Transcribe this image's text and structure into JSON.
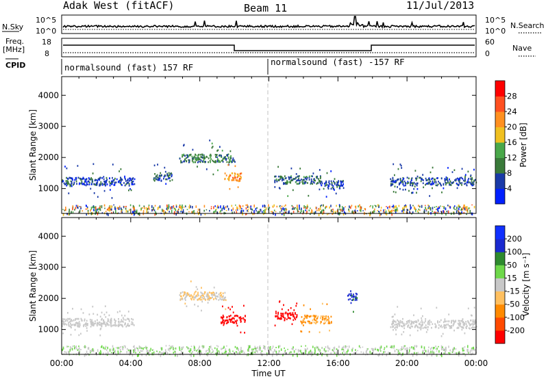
{
  "header": {
    "station": "Adak West (fitACF)",
    "beam": "Beam 11",
    "date": "11/Jul/2013"
  },
  "top_panels": {
    "nsky_label": "N.Sky",
    "nsky_ticks": [
      "10^5",
      "10^0"
    ],
    "nsearch_label": "N.Search",
    "nsearch_ticks": [
      "10^5",
      "10^0"
    ],
    "freq_label": "Freq.",
    "freq_unit": "[MHz]",
    "freq_ticks": [
      "18",
      "8"
    ],
    "nave_label": "Nave",
    "nave_ticks": [
      "60",
      "0"
    ],
    "cpid_label": "CPID",
    "cpid_segments": [
      "normalsound (fast) 157 RF",
      "normalsound (fast) -157 RF"
    ]
  },
  "colors": {
    "power_scale": [
      "#0020ff",
      "#1a3aa8",
      "#3a7a3a",
      "#4aa84a",
      "#f0c020",
      "#ff9020",
      "#ff5020",
      "#ff0000"
    ],
    "velocity_scale": [
      "#ff0000",
      "#ff4a00",
      "#ff8a00",
      "#ffc060",
      "#c8c8c8",
      "#6ed84a",
      "#2e8a2e",
      "#1a2ad0",
      "#1030ff"
    ]
  },
  "chart_data": [
    {
      "type": "heatmap",
      "name": "power-panel",
      "xlabel": "Time UT",
      "ylabel": "Slant Range [km]",
      "x_ticks": [
        "00:00",
        "04:00",
        "08:00",
        "12:00",
        "16:00",
        "20:00",
        "00:00"
      ],
      "xlim": [
        0,
        24
      ],
      "y_ticks": [
        1000,
        2000,
        3000,
        4000
      ],
      "ylim": [
        200,
        4600
      ],
      "colorbar": {
        "label": "Power [dB]",
        "ticks": [
          4,
          8,
          12,
          16,
          20,
          24,
          28
        ],
        "range": [
          0,
          32
        ]
      },
      "features": [
        {
          "t_start": 0.0,
          "t_end": 4.2,
          "range_km": 1250,
          "power_db": 6
        },
        {
          "t_start": 5.3,
          "t_end": 6.4,
          "range_km": 1400,
          "power_db": 7
        },
        {
          "t_start": 6.8,
          "t_end": 10.0,
          "range_km": 2000,
          "power_db": 10
        },
        {
          "t_start": 9.4,
          "t_end": 10.4,
          "range_km": 1400,
          "power_db": 22
        },
        {
          "t_start": 12.3,
          "t_end": 15.0,
          "range_km": 1300,
          "power_db": 9
        },
        {
          "t_start": 15.0,
          "t_end": 16.3,
          "range_km": 1150,
          "power_db": 6
        },
        {
          "t_start": 19.0,
          "t_end": 24.0,
          "range_km": 1250,
          "power_db": 7
        }
      ]
    },
    {
      "type": "heatmap",
      "name": "velocity-panel",
      "xlabel": "Time UT",
      "ylabel": "Slant Range [km]",
      "x_ticks": [
        "00:00",
        "04:00",
        "08:00",
        "12:00",
        "16:00",
        "20:00",
        "00:00"
      ],
      "xlim": [
        0,
        24
      ],
      "y_ticks": [
        1000,
        2000,
        3000,
        4000
      ],
      "ylim": [
        200,
        4600
      ],
      "colorbar": {
        "label": "Velocity [m s⁻¹]",
        "ticks": [
          200,
          100,
          50,
          15,
          -15,
          -50,
          -100,
          -200
        ],
        "range": [
          -250,
          250
        ]
      },
      "features": [
        {
          "t_start": 0.0,
          "t_end": 4.2,
          "range_km": 1250,
          "velocity": 0
        },
        {
          "t_start": 6.8,
          "t_end": 9.5,
          "range_km": 2100,
          "velocity": -30
        },
        {
          "t_start": 9.2,
          "t_end": 10.6,
          "range_km": 1350,
          "velocity": -220
        },
        {
          "t_start": 12.3,
          "t_end": 13.6,
          "range_km": 1450,
          "velocity": -220
        },
        {
          "t_start": 13.8,
          "t_end": 15.6,
          "range_km": 1350,
          "velocity": -90
        },
        {
          "t_start": 16.5,
          "t_end": 17.1,
          "range_km": 2100,
          "velocity": 150
        },
        {
          "t_start": 19.0,
          "t_end": 24.0,
          "range_km": 1200,
          "velocity": 0
        }
      ]
    }
  ]
}
